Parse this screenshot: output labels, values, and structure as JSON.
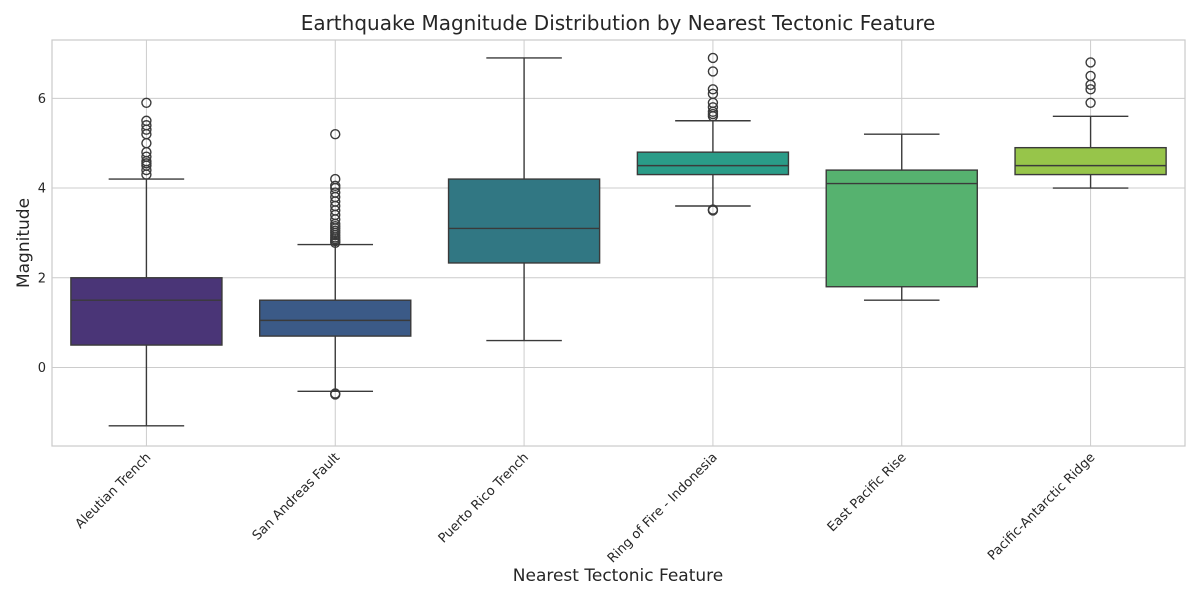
{
  "chart_data": {
    "type": "box",
    "title": "Earthquake Magnitude Distribution by Nearest Tectonic Feature",
    "xlabel": "Nearest Tectonic Feature",
    "ylabel": "Magnitude",
    "ylim": [
      -1.75,
      7.3
    ],
    "yticks": [
      0,
      2,
      4,
      6
    ],
    "grid": true,
    "categories": [
      "Aleutian Trench",
      "San Andreas Fault",
      "Puerto Rico Trench",
      "Ring of Fire - Indonesia",
      "East Pacific Rise",
      "Pacific-Antarctic Ridge"
    ],
    "boxes": [
      {
        "category": "Aleutian Trench",
        "color": "#4a3577",
        "whisker_low": -1.3,
        "q1": 0.5,
        "median": 1.5,
        "q3": 2.0,
        "whisker_high": 4.2,
        "outliers": [
          4.3,
          4.4,
          4.5,
          4.55,
          4.6,
          4.7,
          4.8,
          5.0,
          5.2,
          5.3,
          5.4,
          5.5,
          5.9
        ]
      },
      {
        "category": "San Andreas Fault",
        "color": "#3b5a87",
        "whisker_low": -0.53,
        "q1": 0.7,
        "median": 1.05,
        "q3": 1.5,
        "whisker_high": 2.74,
        "outliers": [
          -0.58,
          -0.6,
          2.78,
          2.82,
          2.86,
          2.9,
          2.95,
          3.0,
          3.05,
          3.1,
          3.15,
          3.2,
          3.3,
          3.4,
          3.5,
          3.6,
          3.7,
          3.8,
          3.9,
          4.0,
          4.05,
          4.2,
          5.2
        ]
      },
      {
        "category": "Puerto Rico Trench",
        "color": "#317783",
        "whisker_low": 0.6,
        "q1": 2.33,
        "median": 3.1,
        "q3": 4.2,
        "whisker_high": 6.9,
        "outliers": []
      },
      {
        "category": "Ring of Fire - Indonesia",
        "color": "#2a9c88",
        "whisker_low": 3.6,
        "q1": 4.3,
        "median": 4.5,
        "q3": 4.8,
        "whisker_high": 5.5,
        "outliers": [
          3.5,
          3.52,
          5.6,
          5.65,
          5.7,
          5.8,
          5.9,
          6.1,
          6.2,
          6.6,
          6.9
        ]
      },
      {
        "category": "East Pacific Rise",
        "color": "#56b26f",
        "whisker_low": 1.5,
        "q1": 1.8,
        "median": 4.1,
        "q3": 4.4,
        "whisker_high": 5.2,
        "outliers": []
      },
      {
        "category": "Pacific-Antarctic Ridge",
        "color": "#97c54a",
        "whisker_low": 4.0,
        "q1": 4.3,
        "median": 4.5,
        "q3": 4.9,
        "whisker_high": 5.6,
        "outliers": [
          5.9,
          6.2,
          6.3,
          6.5,
          6.8
        ]
      }
    ]
  }
}
